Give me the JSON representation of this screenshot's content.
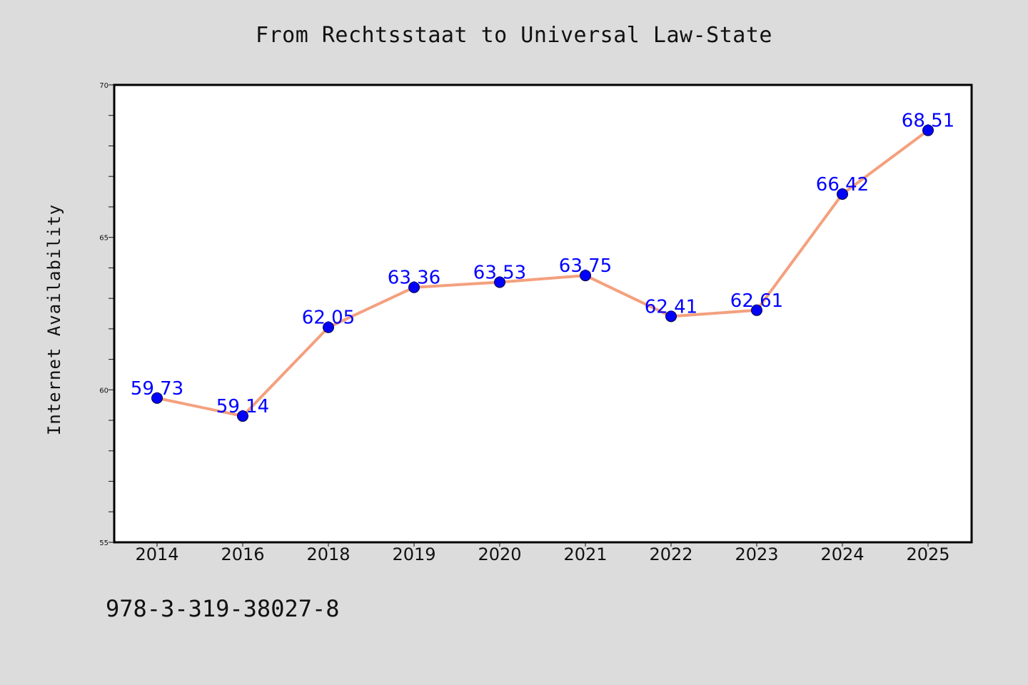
{
  "page": {
    "title": "From Rechtsstaat to Universal Law-State",
    "footer_code": "978-3-319-38027-8"
  },
  "chart_data": {
    "type": "line",
    "title": "From Rechtsstaat to Universal Law-State",
    "xlabel": "",
    "ylabel": "Internet Availability",
    "categories": [
      "2014",
      "2016",
      "2018",
      "2019",
      "2020",
      "2021",
      "2022",
      "2023",
      "2024",
      "2025"
    ],
    "series": [
      {
        "values": [
          59.73,
          59.14,
          62.05,
          63.36,
          63.53,
          63.75,
          62.41,
          62.61,
          66.42,
          68.51
        ],
        "line_color": "#f4a07e",
        "marker_color": "#0000ff"
      }
    ],
    "data_labels": [
      "59.73",
      "59.14",
      "62.05",
      "63.36",
      "63.53",
      "63.75",
      "62.41",
      "62.61",
      "66.42",
      "68.51"
    ],
    "data_label_color": "#0000ff",
    "ylim": [
      55,
      70
    ],
    "yticks": [
      55,
      60,
      65,
      70
    ],
    "grid": false,
    "legend": "none"
  }
}
